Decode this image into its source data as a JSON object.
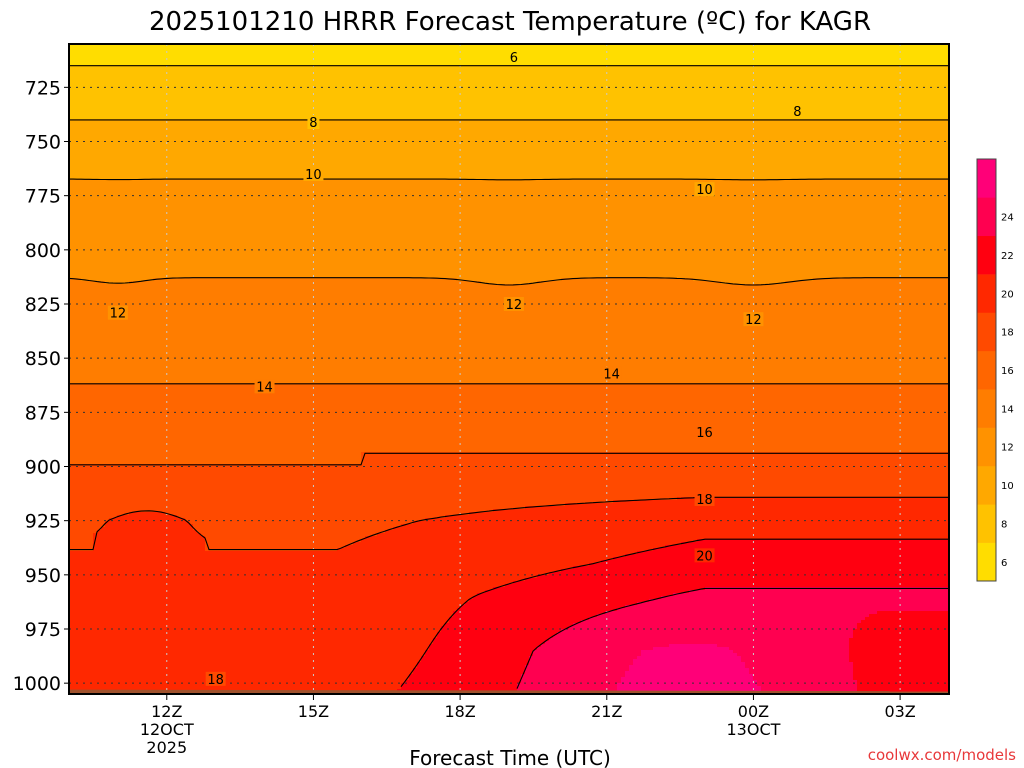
{
  "chart_data": {
    "type": "heatmap",
    "title": "2025101210 HRRR Forecast Temperature (ºC) for KAGR",
    "xlabel": "Forecast Time (UTC)",
    "ylabel": "",
    "credit": "coolwx.com/models",
    "x_ticks": [
      {
        "hour": 12,
        "lines": [
          "12Z",
          "12OCT",
          "2025"
        ]
      },
      {
        "hour": 15,
        "lines": [
          "15Z"
        ]
      },
      {
        "hour": 18,
        "lines": [
          "18Z"
        ]
      },
      {
        "hour": 21,
        "lines": [
          "21Z"
        ]
      },
      {
        "hour": 24,
        "lines": [
          "00Z",
          "13OCT"
        ]
      },
      {
        "hour": 27,
        "lines": [
          "03Z"
        ]
      }
    ],
    "xlim": [
      10,
      28
    ],
    "ylim": [
      1005,
      705
    ],
    "y_ticks": [
      725,
      750,
      775,
      800,
      825,
      850,
      875,
      900,
      925,
      950,
      975,
      1000
    ],
    "colorbar": {
      "levels": [
        4,
        6,
        8,
        10,
        12,
        14,
        16,
        18,
        20,
        22,
        24,
        26
      ],
      "tick_labels": [
        6,
        8,
        10,
        12,
        14,
        16,
        18,
        20,
        22,
        24
      ],
      "colors": [
        "#ffdd00",
        "#ffc200",
        "#ffa800",
        "#ff9200",
        "#ff7d00",
        "#ff6600",
        "#ff4a00",
        "#ff2800",
        "#ff0010",
        "#ff0050",
        "#ff0078"
      ]
    },
    "temperature_at_1000_hPa": {
      "x": [
        10,
        12,
        13,
        15,
        16,
        18,
        19,
        21,
        22,
        24,
        26,
        28
      ],
      "y": [
        17.0,
        17.4,
        17.8,
        19.6,
        20.5,
        22.3,
        23.1,
        23.9,
        24.2,
        24.4,
        21.4,
        20.4
      ]
    },
    "contour_labels": [
      {
        "value": "6",
        "x": 19.1,
        "p": 711
      },
      {
        "value": "8",
        "x": 15.0,
        "p": 741
      },
      {
        "value": "8",
        "x": 24.9,
        "p": 736
      },
      {
        "value": "10",
        "x": 15.0,
        "p": 765
      },
      {
        "value": "10",
        "x": 23.0,
        "p": 772
      },
      {
        "value": "12",
        "x": 11.0,
        "p": 829
      },
      {
        "value": "12",
        "x": 19.1,
        "p": 825
      },
      {
        "value": "12",
        "x": 24.0,
        "p": 832
      },
      {
        "value": "14",
        "x": 14.0,
        "p": 863
      },
      {
        "value": "14",
        "x": 21.1,
        "p": 857
      },
      {
        "value": "16",
        "x": 23.0,
        "p": 884
      },
      {
        "value": "18",
        "x": 23.0,
        "p": 915
      },
      {
        "value": "18",
        "x": 13.0,
        "p": 998
      },
      {
        "value": "20",
        "x": 23.0,
        "p": 941
      }
    ],
    "ground_level_hPa": 1003,
    "grid": true
  }
}
